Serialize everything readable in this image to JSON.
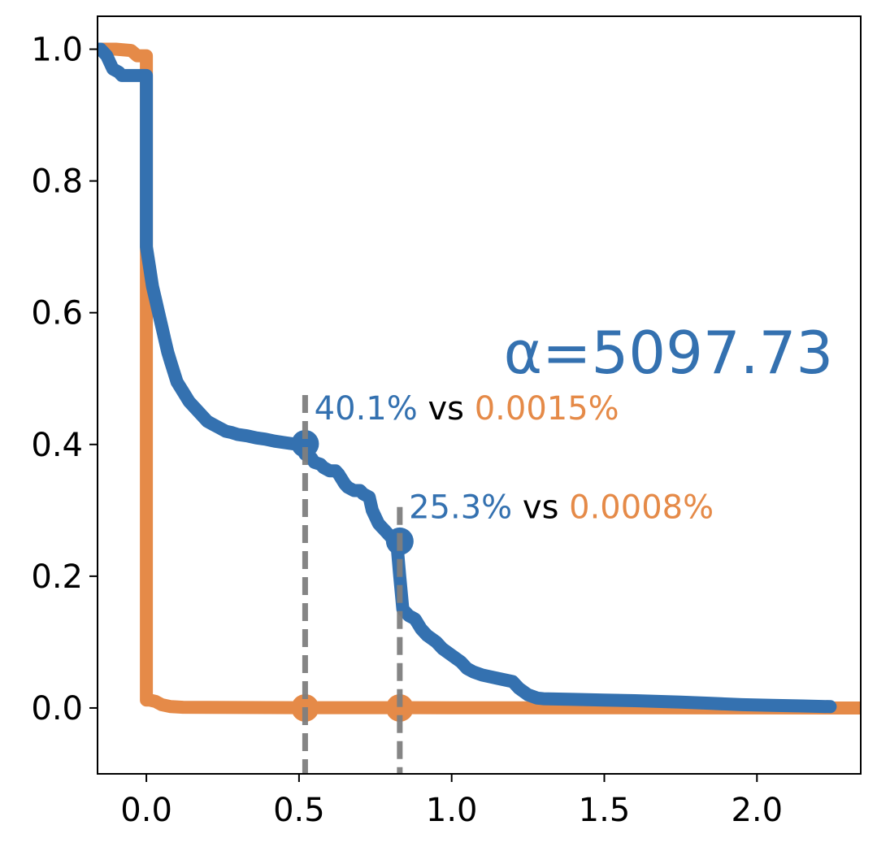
{
  "chart_data": {
    "type": "line",
    "title": "",
    "xlabel": "",
    "ylabel": "",
    "xlim": [
      -0.16,
      2.34
    ],
    "ylim": [
      -0.1,
      1.05
    ],
    "xticks": [
      0.0,
      0.5,
      1.0,
      1.5,
      2.0
    ],
    "xtick_labels": [
      "0.0",
      "0.5",
      "1.0",
      "1.5",
      "2.0"
    ],
    "yticks": [
      0.0,
      0.2,
      0.4,
      0.6,
      0.8,
      1.0
    ],
    "ytick_labels": [
      "0.0",
      "0.2",
      "0.4",
      "0.6",
      "0.8",
      "1.0"
    ],
    "grid": false,
    "colors": {
      "blue": "#3471b0",
      "orange": "#e58a48",
      "marker_line": "#7f7f7f",
      "neutral": "#000000"
    },
    "series": [
      {
        "color": "blue",
        "x": [
          -0.16,
          -0.15,
          -0.13,
          -0.11,
          -0.09,
          -0.08,
          -0.07,
          -0.05,
          -0.03,
          -0.01,
          0.0,
          0.0,
          0.0,
          0.01,
          0.02,
          0.03,
          0.04,
          0.05,
          0.06,
          0.07,
          0.08,
          0.09,
          0.1,
          0.12,
          0.14,
          0.16,
          0.18,
          0.2,
          0.22,
          0.24,
          0.26,
          0.28,
          0.3,
          0.33,
          0.36,
          0.39,
          0.42,
          0.45,
          0.48,
          0.5,
          0.52,
          0.54,
          0.55,
          0.57,
          0.58,
          0.6,
          0.62,
          0.63,
          0.65,
          0.66,
          0.68,
          0.7,
          0.71,
          0.73,
          0.74,
          0.75,
          0.76,
          0.77,
          0.78,
          0.79,
          0.8,
          0.81,
          0.82,
          0.83,
          0.84,
          0.86,
          0.88,
          0.9,
          0.92,
          0.95,
          0.97,
          1.0,
          1.03,
          1.05,
          1.07,
          1.1,
          1.12,
          1.15,
          1.2,
          1.22,
          1.25,
          1.28,
          1.3,
          1.4,
          1.5,
          1.6,
          1.75,
          1.85,
          1.95,
          2.05,
          2.15,
          2.24
        ],
        "y": [
          1.0,
          1.0,
          0.99,
          0.97,
          0.965,
          0.96,
          0.96,
          0.96,
          0.96,
          0.96,
          0.96,
          0.8,
          0.7,
          0.67,
          0.64,
          0.62,
          0.6,
          0.58,
          0.56,
          0.54,
          0.525,
          0.51,
          0.495,
          0.48,
          0.465,
          0.455,
          0.445,
          0.435,
          0.43,
          0.425,
          0.42,
          0.418,
          0.415,
          0.413,
          0.41,
          0.408,
          0.405,
          0.403,
          0.401,
          0.401,
          0.385,
          0.38,
          0.373,
          0.37,
          0.365,
          0.36,
          0.36,
          0.355,
          0.34,
          0.335,
          0.33,
          0.33,
          0.325,
          0.32,
          0.3,
          0.29,
          0.28,
          0.275,
          0.27,
          0.265,
          0.26,
          0.255,
          0.253,
          0.2,
          0.15,
          0.14,
          0.135,
          0.12,
          0.11,
          0.1,
          0.09,
          0.08,
          0.07,
          0.06,
          0.055,
          0.05,
          0.048,
          0.045,
          0.04,
          0.03,
          0.02,
          0.015,
          0.014,
          0.013,
          0.012,
          0.011,
          0.009,
          0.007,
          0.005,
          0.004,
          0.003,
          0.002
        ]
      },
      {
        "color": "orange",
        "x": [
          -0.16,
          -0.1,
          -0.05,
          -0.03,
          -0.01,
          0.0,
          0.0,
          0.0,
          0.0,
          0.01,
          0.03,
          0.05,
          0.08,
          0.12,
          0.2,
          0.5,
          1.0,
          1.5,
          2.0,
          2.34
        ],
        "y": [
          1.0,
          1.0,
          0.998,
          0.99,
          0.99,
          0.99,
          0.8,
          0.3,
          0.012,
          0.012,
          0.01,
          0.005,
          0.002,
          0.001,
          0.0008,
          0.0005,
          0.0003,
          0.0002,
          0.0001,
          0.0
        ]
      }
    ],
    "thresholds": [
      {
        "x": 0.52,
        "line_top": 0.475,
        "blue_point": 0.401,
        "orange_point": 1.5e-05,
        "label_x": 0.55,
        "label_y": 0.475,
        "blue_text": "40.1%",
        "mid_text": " vs ",
        "orange_text": "0.0015%"
      },
      {
        "x": 0.83,
        "line_top": 0.305,
        "blue_point": 0.253,
        "orange_point": 8e-06,
        "label_x": 0.86,
        "label_y": 0.325,
        "blue_text": "25.3%",
        "mid_text": " vs ",
        "orange_text": "0.0008%"
      }
    ],
    "alpha_label": {
      "text": "α=5097.73",
      "x": 2.25,
      "y": 0.57
    }
  }
}
